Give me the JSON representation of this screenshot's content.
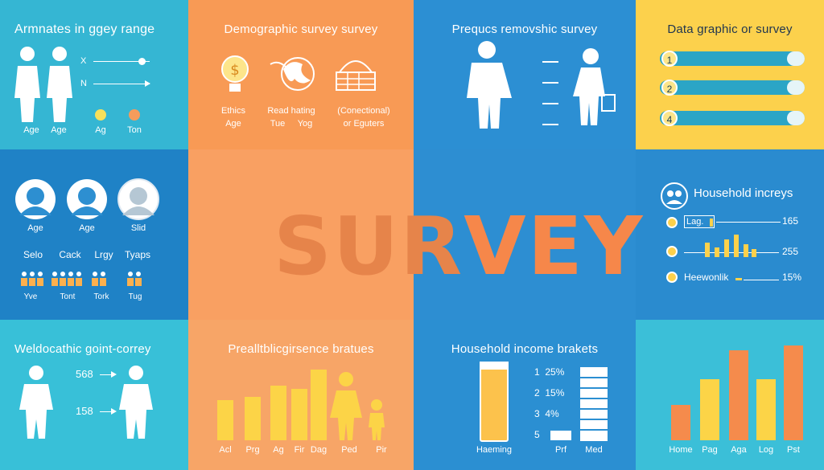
{
  "panels": {
    "p1": {
      "title": "Armnates in ggey range",
      "labels": [
        "Age",
        "Age",
        "Ag",
        "Ton"
      ],
      "marks": [
        "X",
        "N"
      ]
    },
    "p2": {
      "title": "Demographic survey survey",
      "labels": [
        "Ethics",
        "Age",
        "Read hating",
        "Tue",
        "Yog",
        "(Conectional)",
        "or Eguters"
      ]
    },
    "p3": {
      "title": "Prequcs removshic survey"
    },
    "p4": {
      "title": "Data graphic or survey",
      "items": [
        "1",
        "2",
        "4"
      ]
    },
    "p5": {
      "labels": [
        "Age",
        "Age",
        "Slid"
      ],
      "row2": [
        "Selo",
        "Cack",
        "Lrgy",
        "Tyaps"
      ],
      "row3": [
        "Yve",
        "Tont",
        "Tork",
        "Tug"
      ]
    },
    "center": {
      "word_a": "SUR",
      "word_b": "VEY"
    },
    "p8": {
      "title": "Household increys",
      "rows": [
        {
          "label": "Lag.",
          "value": "165"
        },
        {
          "label": "",
          "value": "255"
        },
        {
          "label": "Heewonlik",
          "value": "15%"
        }
      ]
    },
    "p9": {
      "title": "Weldocathic goint-correy",
      "values": [
        "568",
        "158"
      ]
    },
    "p10": {
      "title": "Prealltblicgirsence bratues",
      "labels": [
        "Acl",
        "Prg",
        "Ag",
        "Fir",
        "Dag",
        "Ped",
        "Pir"
      ]
    },
    "p11": {
      "title": "Household income brakets",
      "rows": [
        "1  25%",
        "2  15%",
        "3  4%",
        "5"
      ],
      "labels": [
        "Haeming",
        "Prf",
        "Med"
      ]
    },
    "p12": {
      "labels": [
        "Home",
        "Pag",
        "Aga",
        "Log",
        "Pst"
      ]
    }
  },
  "colors": {
    "teal": "#35b6d3",
    "orange": "#f89a55",
    "blue": "#2c8fd3",
    "yellow": "#fcd14c",
    "bar_yellow": "#fcd447",
    "bar_orange": "#f58b4c"
  },
  "icons": [
    "person-icon",
    "lightbulb-icon",
    "globe-icon",
    "bag-icon",
    "avatar-icon",
    "survey-badge-icon"
  ]
}
